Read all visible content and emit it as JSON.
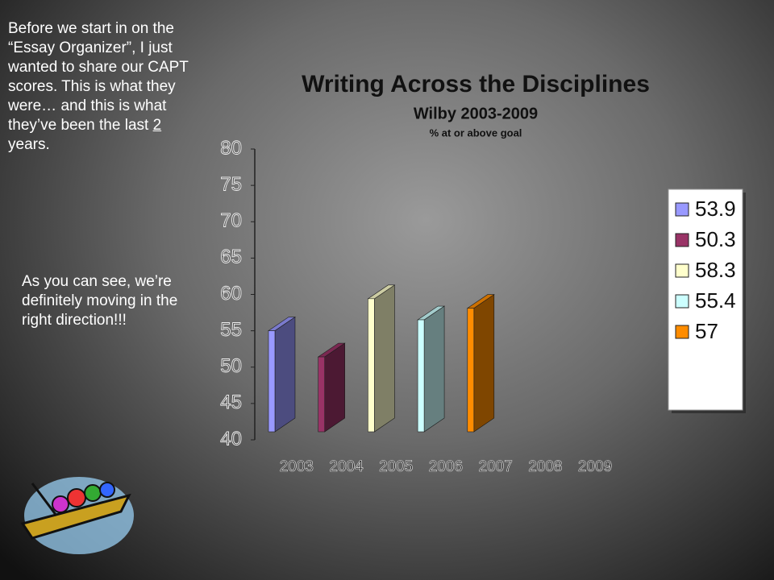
{
  "chart_data": {
    "type": "bar3d",
    "title": "Writing Across the Disciplines",
    "subtitle": "Wilby 2003-2009",
    "caption": "% at or above goal",
    "categories": [
      "2003",
      "2004",
      "2005",
      "2006",
      "2007",
      "2008",
      "2009"
    ],
    "series": [
      {
        "name": "53.9",
        "color": "#9999ff",
        "values": [
          53.9,
          null,
          null,
          null,
          null,
          null,
          null
        ]
      },
      {
        "name": "50.3",
        "color": "#993366",
        "values": [
          null,
          50.3,
          null,
          null,
          null,
          null,
          null
        ]
      },
      {
        "name": "58.3",
        "color": "#ffffcc",
        "values": [
          null,
          null,
          58.3,
          null,
          null,
          null,
          null
        ]
      },
      {
        "name": "55.4",
        "color": "#ccffff",
        "values": [
          null,
          null,
          null,
          55.4,
          null,
          null,
          null
        ]
      },
      {
        "name": "57",
        "color": "#ff8c00",
        "values": [
          null,
          null,
          null,
          null,
          57,
          null,
          null
        ]
      }
    ],
    "ylim": [
      40,
      80
    ],
    "yticks": [
      40,
      45,
      50,
      55,
      60,
      65,
      70,
      75,
      80
    ],
    "legend": "right"
  },
  "slide_text": {
    "paragraph_1": [
      "Before we start in on the “Essay Organizer”, I just wanted to share our CAPT scores. This is what they were… and this is what they’ve been the last ",
      "2",
      " years."
    ],
    "paragraph_2": "As you can see, we’re definitely moving in the right direction!!!"
  }
}
